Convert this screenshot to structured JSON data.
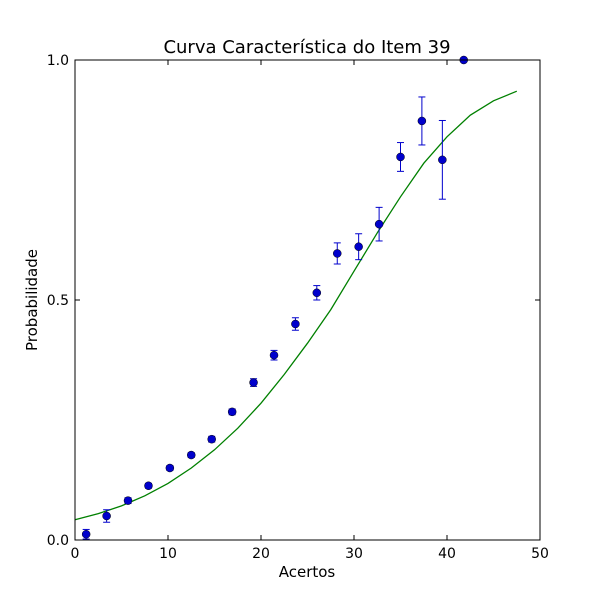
{
  "chart_data": {
    "type": "scatter",
    "title": "Curva Característica do Item 39",
    "xlabel": "Acertos",
    "ylabel": "Probabilidade",
    "xlim": [
      0,
      50
    ],
    "ylim": [
      0.0,
      1.0
    ],
    "xticks": [
      "0",
      "10",
      "20",
      "30",
      "40",
      "50"
    ],
    "yticks": [
      "0.0",
      "0.5",
      "1.0"
    ],
    "grid": false,
    "colors": {
      "points": "#0000cc",
      "curve": "#008000"
    },
    "series": [
      {
        "kind": "points-with-errorbars",
        "x": [
          1.2,
          3.4,
          5.7,
          7.9,
          10.2,
          12.5,
          14.7,
          16.9,
          19.2,
          21.4,
          23.7,
          26.0,
          28.2,
          30.5,
          32.7,
          35.0,
          37.3,
          39.5,
          41.8
        ],
        "y": [
          0.012,
          0.05,
          0.082,
          0.113,
          0.15,
          0.177,
          0.21,
          0.267,
          0.328,
          0.385,
          0.45,
          0.515,
          0.597,
          0.611,
          0.658,
          0.798,
          0.873,
          0.792,
          1.0
        ],
        "yerr": [
          0.01,
          0.013,
          0.006,
          0.005,
          0.005,
          0.005,
          0.006,
          0.006,
          0.008,
          0.01,
          0.013,
          0.015,
          0.022,
          0.027,
          0.035,
          0.03,
          0.05,
          0.082,
          0.0
        ]
      },
      {
        "kind": "fitted-curve",
        "x": [
          0,
          2.5,
          5,
          7.5,
          10,
          12.5,
          15,
          17.5,
          20,
          22.5,
          25,
          27.5,
          30,
          32.5,
          35,
          37.5,
          40,
          42.5,
          45,
          47.5
        ],
        "y": [
          0.042,
          0.055,
          0.071,
          0.092,
          0.118,
          0.15,
          0.188,
          0.233,
          0.285,
          0.345,
          0.41,
          0.48,
          0.56,
          0.64,
          0.715,
          0.785,
          0.84,
          0.885,
          0.915,
          0.935
        ]
      }
    ]
  }
}
